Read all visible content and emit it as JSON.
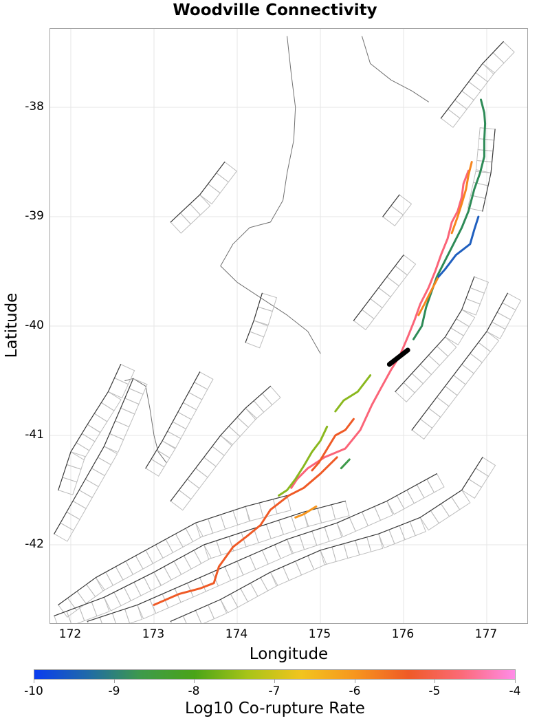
{
  "title": "Woodville Connectivity",
  "chart_data": {
    "type": "map",
    "title": "Woodville Connectivity",
    "xlabel": "Longitude",
    "ylabel": "Latitude",
    "xlim": [
      171.75,
      177.5
    ],
    "ylim": [
      -42.7,
      -37.35
    ],
    "x_ticks": [
      "172",
      "173",
      "174",
      "175",
      "176",
      "177"
    ],
    "y_ticks": [
      "-38",
      "-39",
      "-40",
      "-41",
      "-42"
    ],
    "grid": true,
    "colorbar": {
      "label": "Log10 Co-rupture Rate",
      "ticks": [
        "-10",
        "-9",
        "-8",
        "-7",
        "-6",
        "-5",
        "-4"
      ],
      "range": [
        -10,
        -4
      ],
      "colors": [
        "#0a3cf0",
        "#1f6aa8",
        "#3e9a4a",
        "#4aa418",
        "#a8c418",
        "#f2c41e",
        "#f7961e",
        "#ef5a26",
        "#fb6a78",
        "#ff8ce8"
      ]
    },
    "highlighted_source": {
      "name": "Woodville",
      "color": "#000000",
      "lon": [
        175.83,
        176.05
      ],
      "lat": [
        -40.35,
        -40.22
      ]
    },
    "ruptures": [
      {
        "color": "#2e8b57",
        "log10_rate": -8.6,
        "path": [
          [
            176.93,
            -37.93
          ],
          [
            176.97,
            -38.05
          ],
          [
            176.98,
            -38.15
          ],
          [
            176.97,
            -38.3
          ],
          [
            176.97,
            -38.45
          ],
          [
            176.92,
            -38.6
          ],
          [
            176.85,
            -38.75
          ],
          [
            176.78,
            -38.95
          ],
          [
            176.7,
            -39.1
          ],
          [
            176.6,
            -39.25
          ],
          [
            176.5,
            -39.4
          ],
          [
            176.4,
            -39.55
          ],
          [
            176.33,
            -39.7
          ],
          [
            176.27,
            -39.83
          ],
          [
            176.22,
            -40.0
          ],
          [
            176.12,
            -40.12
          ]
        ]
      },
      {
        "color": "#fb6478",
        "log10_rate": -4.8,
        "path": [
          [
            176.78,
            -38.58
          ],
          [
            176.72,
            -38.7
          ],
          [
            176.7,
            -38.82
          ],
          [
            176.65,
            -38.95
          ],
          [
            176.58,
            -39.05
          ],
          [
            176.53,
            -39.2
          ],
          [
            176.45,
            -39.35
          ],
          [
            176.38,
            -39.5
          ],
          [
            176.3,
            -39.65
          ],
          [
            176.2,
            -39.8
          ],
          [
            176.13,
            -39.95
          ],
          [
            176.05,
            -40.1
          ],
          [
            175.95,
            -40.28
          ],
          [
            175.85,
            -40.4
          ],
          [
            175.72,
            -40.58
          ],
          [
            175.62,
            -40.72
          ],
          [
            175.48,
            -40.95
          ],
          [
            175.3,
            -41.12
          ],
          [
            175.05,
            -41.2
          ],
          [
            174.85,
            -41.3
          ],
          [
            174.72,
            -41.4
          ],
          [
            174.65,
            -41.48
          ]
        ]
      },
      {
        "color": "#f7861e",
        "log10_rate": -6.2,
        "path": [
          [
            176.82,
            -38.5
          ],
          [
            176.78,
            -38.62
          ],
          [
            176.75,
            -38.75
          ],
          [
            176.7,
            -38.88
          ],
          [
            176.65,
            -39.0
          ],
          [
            176.58,
            -39.15
          ]
        ]
      },
      {
        "color": "#f7861e",
        "log10_rate": -6.2,
        "path": [
          [
            176.42,
            -39.55
          ],
          [
            176.33,
            -39.68
          ],
          [
            176.25,
            -39.8
          ],
          [
            176.18,
            -39.9
          ]
        ]
      },
      {
        "color": "#1f5fbf",
        "log10_rate": -9.6,
        "path": [
          [
            176.9,
            -39.0
          ],
          [
            176.85,
            -39.12
          ],
          [
            176.8,
            -39.25
          ],
          [
            176.63,
            -39.35
          ],
          [
            176.5,
            -39.48
          ],
          [
            176.42,
            -39.55
          ]
        ]
      },
      {
        "color": "#8ab81e",
        "log10_rate": -7.7,
        "path": [
          [
            175.6,
            -40.45
          ],
          [
            175.45,
            -40.6
          ],
          [
            175.28,
            -40.68
          ],
          [
            175.18,
            -40.78
          ]
        ]
      },
      {
        "color": "#8ab81e",
        "log10_rate": -7.7,
        "path": [
          [
            175.08,
            -40.92
          ],
          [
            175.0,
            -41.05
          ],
          [
            174.9,
            -41.15
          ],
          [
            174.8,
            -41.28
          ],
          [
            174.7,
            -41.4
          ],
          [
            174.6,
            -41.5
          ],
          [
            174.5,
            -41.55
          ]
        ]
      },
      {
        "color": "#ef5a26",
        "log10_rate": -5.4,
        "path": [
          [
            175.4,
            -40.85
          ],
          [
            175.3,
            -40.95
          ],
          [
            175.18,
            -41.0
          ],
          [
            175.1,
            -41.1
          ],
          [
            174.98,
            -41.25
          ],
          [
            174.9,
            -41.32
          ]
        ]
      },
      {
        "color": "#ef5a26",
        "log10_rate": -5.4,
        "path": [
          [
            175.2,
            -41.2
          ],
          [
            175.0,
            -41.35
          ],
          [
            174.8,
            -41.48
          ],
          [
            174.62,
            -41.55
          ],
          [
            174.4,
            -41.68
          ],
          [
            174.28,
            -41.82
          ],
          [
            174.12,
            -41.92
          ],
          [
            173.95,
            -42.02
          ],
          [
            173.78,
            -42.2
          ],
          [
            173.72,
            -42.35
          ],
          [
            173.55,
            -42.4
          ],
          [
            173.3,
            -42.45
          ],
          [
            173.0,
            -42.55
          ]
        ]
      },
      {
        "color": "#f7961e",
        "log10_rate": -6.5,
        "path": [
          [
            174.95,
            -41.65
          ],
          [
            174.8,
            -41.72
          ],
          [
            174.7,
            -41.75
          ]
        ]
      },
      {
        "color": "#3e9a4a",
        "log10_rate": -8.4,
        "path": [
          [
            175.35,
            -41.22
          ],
          [
            175.25,
            -41.3
          ]
        ]
      }
    ]
  },
  "faults": [
    [
      [
        171.85,
        -42.55
      ],
      [
        172.3,
        -42.3
      ],
      [
        172.9,
        -42.05
      ],
      [
        173.5,
        -41.8
      ],
      [
        174.1,
        -41.65
      ],
      [
        174.6,
        -41.55
      ]
    ],
    [
      [
        171.8,
        -42.65
      ],
      [
        172.4,
        -42.48
      ],
      [
        173.0,
        -42.25
      ],
      [
        173.6,
        -42.0
      ],
      [
        174.2,
        -41.85
      ],
      [
        174.8,
        -41.7
      ],
      [
        175.3,
        -41.6
      ]
    ],
    [
      [
        172.2,
        -42.7
      ],
      [
        172.8,
        -42.55
      ],
      [
        173.4,
        -42.35
      ],
      [
        174.0,
        -42.15
      ],
      [
        174.6,
        -41.95
      ],
      [
        175.2,
        -41.8
      ],
      [
        175.8,
        -41.6
      ],
      [
        176.4,
        -41.35
      ]
    ],
    [
      [
        173.2,
        -42.7
      ],
      [
        173.8,
        -42.5
      ],
      [
        174.4,
        -42.25
      ],
      [
        175.0,
        -42.05
      ],
      [
        175.7,
        -41.9
      ],
      [
        176.2,
        -41.75
      ],
      [
        176.7,
        -41.5
      ],
      [
        176.95,
        -41.2
      ]
    ],
    [
      [
        171.8,
        -41.9
      ],
      [
        172.1,
        -41.5
      ],
      [
        172.4,
        -41.1
      ],
      [
        172.6,
        -40.75
      ],
      [
        172.75,
        -40.48
      ]
    ],
    [
      [
        171.85,
        -41.5
      ],
      [
        172.0,
        -41.15
      ],
      [
        172.2,
        -40.9
      ],
      [
        172.45,
        -40.6
      ],
      [
        172.6,
        -40.35
      ]
    ],
    [
      [
        172.9,
        -41.3
      ],
      [
        173.1,
        -41.05
      ],
      [
        173.35,
        -40.7
      ],
      [
        173.55,
        -40.42
      ]
    ],
    [
      [
        173.2,
        -41.6
      ],
      [
        173.5,
        -41.3
      ],
      [
        173.8,
        -41.0
      ],
      [
        174.1,
        -40.75
      ],
      [
        174.4,
        -40.55
      ]
    ],
    [
      [
        175.4,
        -39.95
      ],
      [
        175.6,
        -39.75
      ],
      [
        175.8,
        -39.55
      ],
      [
        176.0,
        -39.35
      ]
    ],
    [
      [
        175.9,
        -40.6
      ],
      [
        176.2,
        -40.35
      ],
      [
        176.5,
        -40.1
      ],
      [
        176.7,
        -39.85
      ],
      [
        176.85,
        -39.55
      ]
    ],
    [
      [
        176.1,
        -40.95
      ],
      [
        176.4,
        -40.65
      ],
      [
        176.7,
        -40.35
      ],
      [
        177.0,
        -40.05
      ],
      [
        177.25,
        -39.7
      ]
    ],
    [
      [
        176.45,
        -38.1
      ],
      [
        176.7,
        -37.85
      ],
      [
        176.95,
        -37.6
      ],
      [
        177.2,
        -37.4
      ]
    ],
    [
      [
        177.1,
        -38.2
      ],
      [
        177.05,
        -38.6
      ],
      [
        176.95,
        -38.95
      ]
    ],
    [
      [
        173.2,
        -39.05
      ],
      [
        173.55,
        -38.8
      ],
      [
        173.85,
        -38.5
      ]
    ],
    [
      [
        174.1,
        -40.15
      ],
      [
        174.2,
        -39.95
      ],
      [
        174.3,
        -39.7
      ]
    ],
    [
      [
        175.75,
        -39.0
      ],
      [
        175.85,
        -38.9
      ],
      [
        175.95,
        -38.8
      ]
    ]
  ],
  "coastlines": [
    [
      [
        174.6,
        -37.35
      ],
      [
        174.65,
        -37.7
      ],
      [
        174.7,
        -38.0
      ],
      [
        174.68,
        -38.3
      ],
      [
        174.6,
        -38.6
      ],
      [
        174.55,
        -38.85
      ],
      [
        174.4,
        -39.05
      ],
      [
        174.15,
        -39.1
      ],
      [
        173.95,
        -39.25
      ],
      [
        173.8,
        -39.45
      ],
      [
        174.0,
        -39.6
      ],
      [
        174.3,
        -39.75
      ],
      [
        174.6,
        -39.9
      ],
      [
        174.85,
        -40.05
      ],
      [
        175.0,
        -40.25
      ]
    ],
    [
      [
        175.5,
        -37.35
      ],
      [
        175.6,
        -37.6
      ],
      [
        175.85,
        -37.75
      ],
      [
        176.1,
        -37.85
      ],
      [
        176.3,
        -37.95
      ]
    ],
    [
      [
        172.65,
        -40.5
      ],
      [
        172.75,
        -40.48
      ],
      [
        172.9,
        -40.55
      ],
      [
        172.95,
        -40.75
      ],
      [
        173.0,
        -41.0
      ],
      [
        173.05,
        -41.15
      ],
      [
        173.15,
        -41.25
      ]
    ]
  ]
}
